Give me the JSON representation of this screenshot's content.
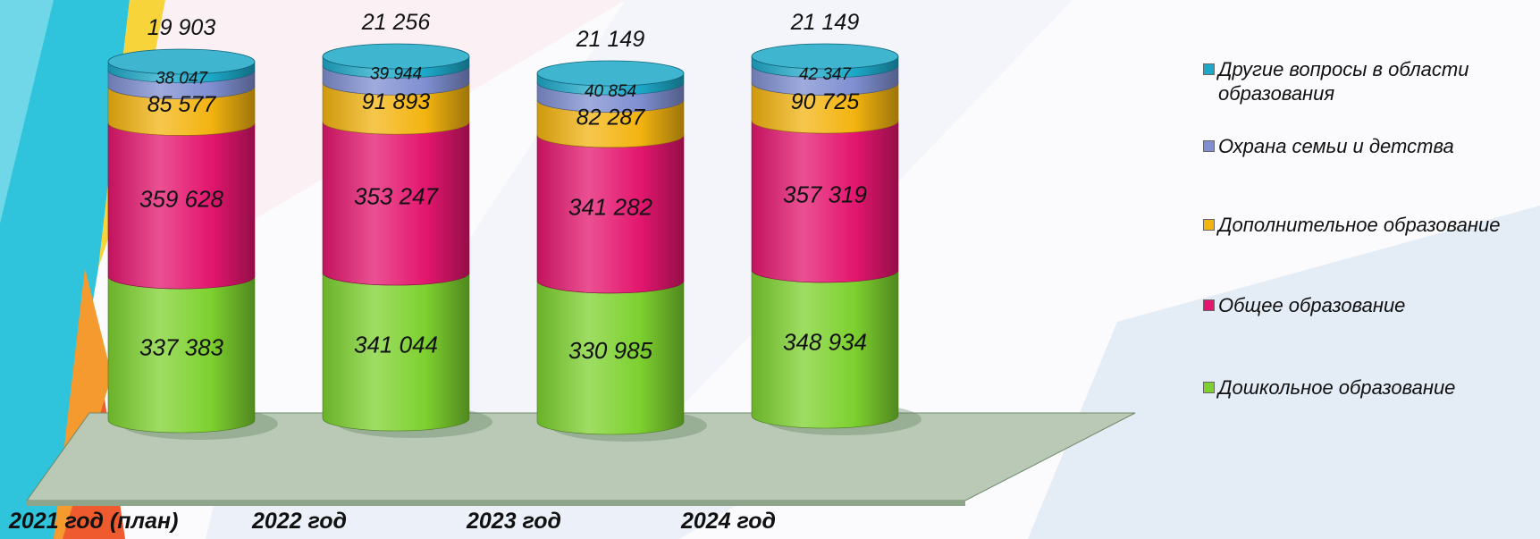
{
  "chart_data": {
    "type": "bar",
    "stacked": true,
    "categories": [
      "2021 год (план)",
      "2022 год",
      "2023 год",
      "2024 год"
    ],
    "series": [
      {
        "name": "Дошкольное образование",
        "values": [
          337383,
          341044,
          330985,
          348934
        ],
        "labels": [
          "337 383",
          "341 044",
          "330 985",
          "348 934"
        ],
        "color": "#7dd12f"
      },
      {
        "name": "Общее образование",
        "values": [
          359628,
          353247,
          341282,
          357319
        ],
        "labels": [
          "359 628",
          "353 247",
          "341 282",
          "357 319"
        ],
        "color": "#e4166f"
      },
      {
        "name": "Дополнительное образование",
        "values": [
          85577,
          91893,
          82287,
          90725
        ],
        "labels": [
          "85 577",
          "91 893",
          "82 287",
          "90 725"
        ],
        "color": "#f3b410"
      },
      {
        "name": "Охрана семьи и детства",
        "values": [
          38047,
          39944,
          40854,
          42347
        ],
        "labels": [
          "38 047",
          "39 944",
          "40 854",
          "42 347"
        ],
        "color": "#7f8fd1"
      },
      {
        "name": "Другие вопросы в области образования",
        "values": [
          19903,
          21256,
          21149,
          21149
        ],
        "labels": [
          "19 903",
          "21 256",
          "21 149",
          "21 149"
        ],
        "color": "#1da8c8"
      }
    ],
    "legend_position": "right",
    "grid": false
  }
}
